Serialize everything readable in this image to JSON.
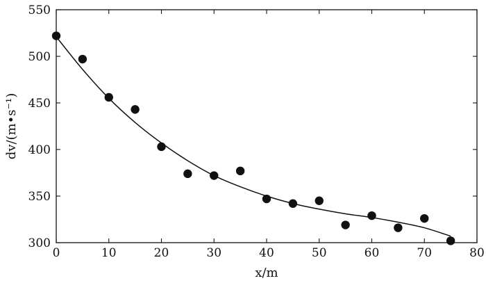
{
  "chart_data": {
    "type": "scatter",
    "xlabel": "x/m",
    "ylabel": "dv/(m•s⁻¹)",
    "xlim": [
      0,
      80
    ],
    "ylim": [
      300,
      550
    ],
    "xticks": [
      0,
      10,
      20,
      30,
      40,
      50,
      60,
      70,
      80
    ],
    "yticks": [
      300,
      350,
      400,
      450,
      500,
      550
    ],
    "grid": false,
    "series": [
      {
        "kind": "scatter",
        "x": [
          0,
          5,
          10,
          15,
          20,
          25,
          30,
          35,
          40,
          45,
          50,
          55,
          60,
          65,
          70,
          75
        ],
        "y": [
          522,
          497,
          456,
          443,
          403,
          374,
          372,
          377,
          347,
          342,
          345,
          319,
          329,
          316,
          326,
          302
        ]
      },
      {
        "kind": "line",
        "x": [
          0,
          5,
          10,
          15,
          20,
          25,
          30,
          35,
          40,
          45,
          50,
          55,
          60,
          65,
          70,
          75
        ],
        "y": [
          521,
          486,
          455,
          429,
          407,
          388,
          372,
          360,
          350,
          342,
          336,
          331,
          327,
          322,
          316,
          307
        ]
      }
    ],
    "colors": {
      "axis": "#111111",
      "points": "#111111",
      "line": "#111111"
    }
  }
}
